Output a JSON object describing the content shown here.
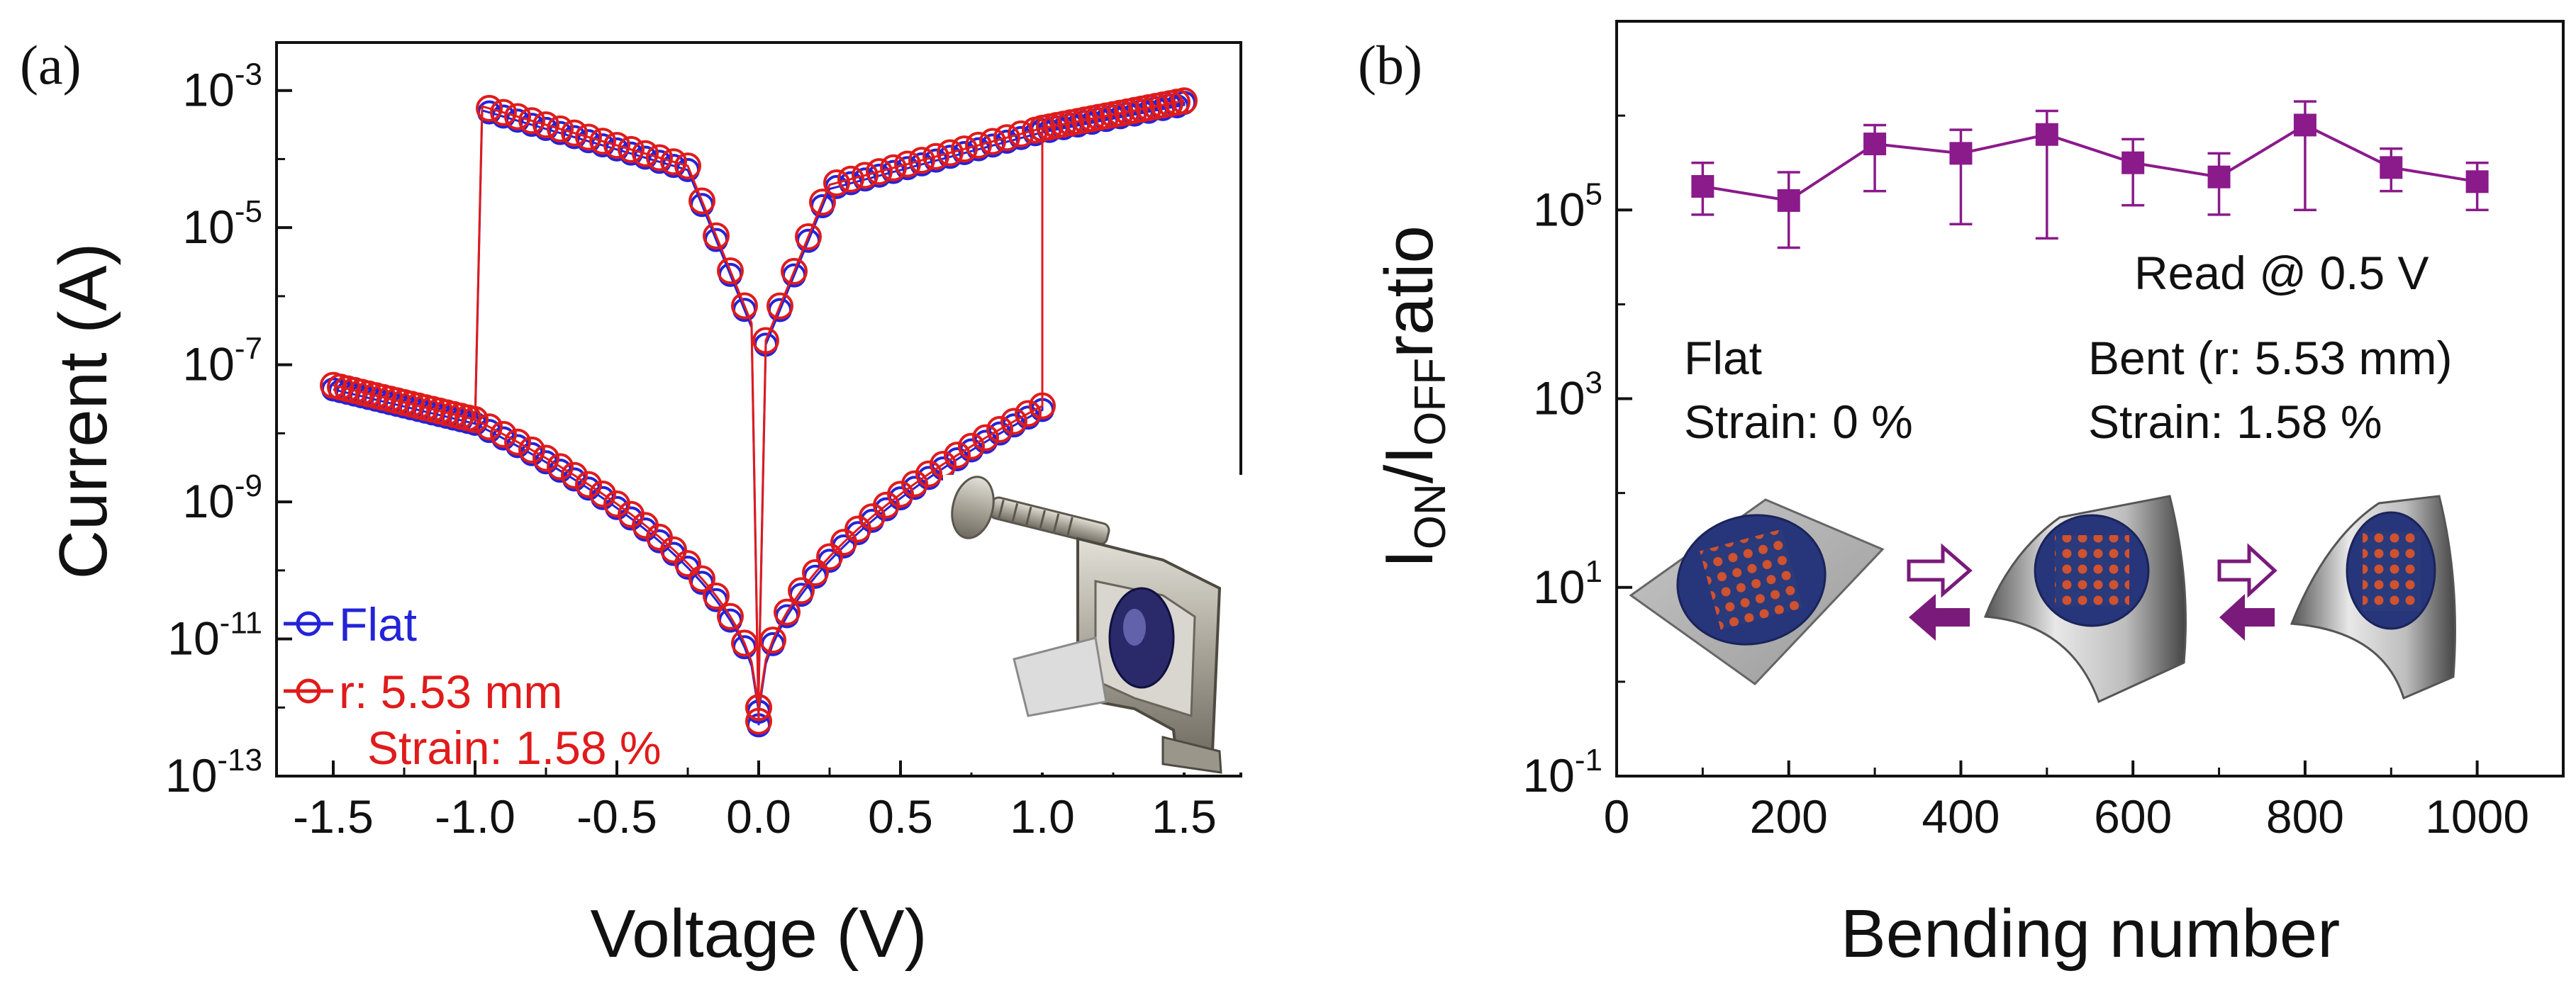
{
  "panel_a": {
    "label": "(a)",
    "photo_alt": "bending fixture photo",
    "legend": {
      "flat": "Flat",
      "bent": "r: 5.53 mm",
      "strain": "Strain: 1.58 %"
    }
  },
  "panel_b": {
    "label": "(b)",
    "read_note": "Read @ 0.5 V",
    "flat_title": "Flat",
    "flat_strain": "Strain: 0 %",
    "bent_title": "Bent (r: 5.53 mm)",
    "bent_strain": "Strain: 1.58 %"
  },
  "colors": {
    "flat": "#2323d8",
    "bent": "#e01b1b",
    "ratio": "#8b1a8b",
    "arrow": "#7a1a7a",
    "axis": "#111111"
  },
  "chart_data": [
    {
      "type": "line",
      "id": "iv-curve",
      "xlabel": "Voltage (V)",
      "ylabel": "Current (A)",
      "yscale": "log",
      "xlim": [
        -1.7,
        1.7
      ],
      "ylim_exp": [
        -13,
        -2.3
      ],
      "x_ticks": [
        -1.5,
        -1.0,
        -0.5,
        0.0,
        0.5,
        1.0,
        1.5
      ],
      "x_tick_labels": [
        "-1.5",
        "-1.0",
        "-0.5",
        "0.0",
        "0.5",
        "1.0",
        "1.5"
      ],
      "y_tick_exps": [
        -3,
        -5,
        -7,
        -9,
        -11,
        -13
      ],
      "y_tick_labels": [
        {
          "base": "10",
          "exp": "-3"
        },
        {
          "base": "10",
          "exp": "-5"
        },
        {
          "base": "10",
          "exp": "-7"
        },
        {
          "base": "10",
          "exp": "-9"
        },
        {
          "base": "10",
          "exp": "-11"
        },
        {
          "base": "10",
          "exp": "-13"
        }
      ],
      "curve_model": {
        "lrs_left_log10I_at_-1V": -3.2,
        "lrs_right_log10I_at_1.5V": -3.15,
        "lrs_right_log10I_at_1V": -3.55,
        "hrs_left_log10I_at_-1.5V": -7.3,
        "hrs_left_log10I_at_-1V": -7.8,
        "hrs_right_log10I_at_1V": -7.6,
        "set_voltage": 1.0,
        "reset_voltage": -1.0,
        "minimum_near_0V_log10I": -12.2
      },
      "series": [
        {
          "name": "Flat",
          "marker": "open-circle",
          "color_key": "flat"
        },
        {
          "name": "r: 5.53 mm",
          "marker": "open-circle",
          "color_key": "bent"
        }
      ]
    },
    {
      "type": "line",
      "id": "on-off-ratio",
      "xlabel": "Bending number",
      "ylabel": "ION/IOFF ratio",
      "ylabel_parts": {
        "i1": "I",
        "sub1": "ON",
        "slash": "/",
        "i2": "I",
        "sub2": "OFF",
        "rest": "ratio"
      },
      "yscale": "log",
      "xlim": [
        0,
        1100
      ],
      "ylim_exp": [
        -1,
        7
      ],
      "x_ticks": [
        0,
        200,
        400,
        600,
        800,
        1000
      ],
      "x_tick_labels": [
        "0",
        "200",
        "400",
        "600",
        "800",
        "1000"
      ],
      "y_tick_exps": [
        5,
        3,
        1,
        -1
      ],
      "y_tick_labels": [
        {
          "base": "10",
          "exp": "5"
        },
        {
          "base": "10",
          "exp": "3"
        },
        {
          "base": "10",
          "exp": "1"
        },
        {
          "base": "10",
          "exp": "-1"
        }
      ],
      "series": [
        {
          "name": "ION/IOFF",
          "marker": "filled-square",
          "color_key": "ratio",
          "x": [
            100,
            200,
            300,
            400,
            500,
            600,
            700,
            800,
            900,
            1000
          ],
          "log10_values": [
            5.25,
            5.1,
            5.7,
            5.6,
            5.8,
            5.5,
            5.35,
            5.9,
            5.45,
            5.3
          ],
          "log10_err_low": [
            4.95,
            4.6,
            5.2,
            4.85,
            4.7,
            5.05,
            4.95,
            5.0,
            5.2,
            5.0
          ],
          "log10_err_high": [
            5.5,
            5.4,
            5.9,
            5.85,
            6.05,
            5.75,
            5.6,
            6.15,
            5.65,
            5.5
          ]
        }
      ]
    }
  ]
}
